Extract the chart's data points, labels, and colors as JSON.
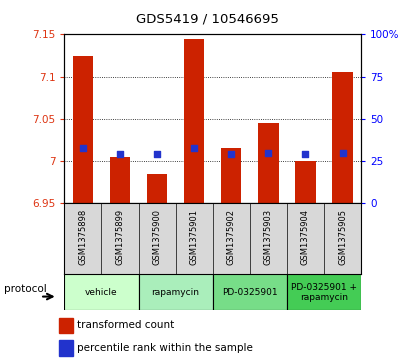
{
  "title": "GDS5419 / 10546695",
  "samples": [
    "GSM1375898",
    "GSM1375899",
    "GSM1375900",
    "GSM1375901",
    "GSM1375902",
    "GSM1375903",
    "GSM1375904",
    "GSM1375905"
  ],
  "transformed_counts": [
    7.125,
    7.005,
    6.985,
    7.145,
    7.015,
    7.045,
    7.0,
    7.105
  ],
  "percentile_ranks": [
    33,
    29,
    29,
    33,
    29,
    30,
    29,
    30
  ],
  "bar_bottom": 6.95,
  "ylim": [
    6.95,
    7.15
  ],
  "right_ylim": [
    0,
    100
  ],
  "right_yticks": [
    0,
    25,
    50,
    75,
    100
  ],
  "right_yticklabels": [
    "0",
    "25",
    "50",
    "75",
    "100%"
  ],
  "left_yticks": [
    6.95,
    7.0,
    7.05,
    7.1,
    7.15
  ],
  "left_yticklabels": [
    "6.95",
    "7",
    "7.05",
    "7.1",
    "7.15"
  ],
  "grid_yticks": [
    7.0,
    7.05,
    7.1
  ],
  "protocols": [
    {
      "label": "vehicle",
      "samples": [
        0,
        1
      ],
      "color": "#ccffcc"
    },
    {
      "label": "rapamycin",
      "samples": [
        2,
        3
      ],
      "color": "#aaeebb"
    },
    {
      "label": "PD-0325901",
      "samples": [
        4,
        5
      ],
      "color": "#77dd88"
    },
    {
      "label": "PD-0325901 +\nrapamycin",
      "samples": [
        6,
        7
      ],
      "color": "#44cc55"
    }
  ],
  "bar_color": "#cc2200",
  "dot_color": "#2233cc",
  "bg_color": "#d8d8d8",
  "legend_bar_color": "#cc2200",
  "legend_dot_color": "#2233cc",
  "protocol_label": "protocol"
}
